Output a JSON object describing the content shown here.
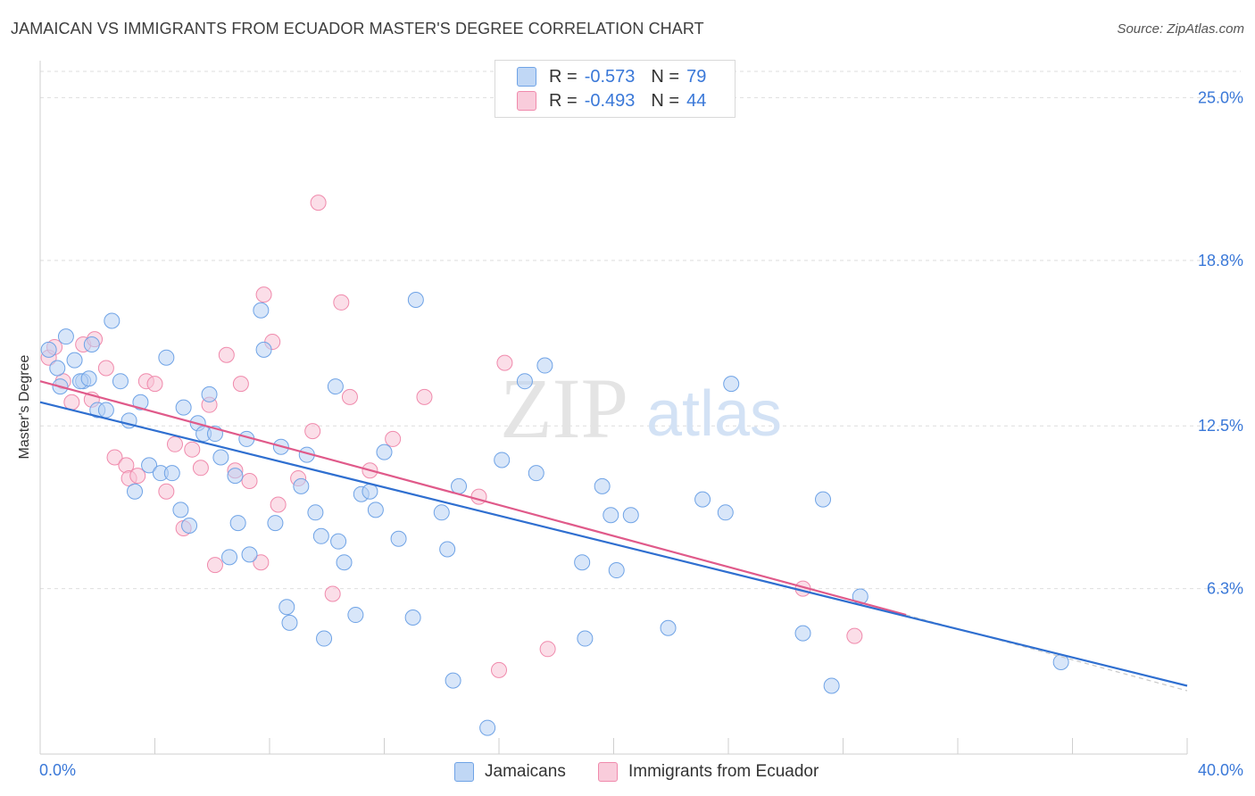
{
  "title": "JAMAICAN VS IMMIGRANTS FROM ECUADOR MASTER'S DEGREE CORRELATION CHART",
  "source": "Source: ZipAtlas.com",
  "watermark": {
    "zip": "ZIP",
    "atlas": "atlas"
  },
  "legend": {
    "rows": [
      {
        "r_label": "R =",
        "r_value": "-0.573",
        "n_label": "N =",
        "n_value": "79"
      },
      {
        "r_label": "R =",
        "r_value": "-0.493",
        "n_label": "N =",
        "n_value": "44"
      }
    ]
  },
  "colors": {
    "blue": "#6fa3e6",
    "blue_fill": "#b8d2f4",
    "blue_line": "#2f6fd0",
    "pink": "#f08aac",
    "pink_fill": "#f7c3d5",
    "pink_line": "#e05a8a",
    "tick_label": "#3a78d8"
  },
  "chart_data": {
    "type": "scatter",
    "title": "JAMAICAN VS IMMIGRANTS FROM ECUADOR MASTER'S DEGREE CORRELATION CHART",
    "xlabel": "",
    "ylabel": "Master's Degree",
    "xlim": [
      0,
      40
    ],
    "ylim": [
      0,
      26
    ],
    "x_tick_labels": [
      "0.0%",
      "40.0%"
    ],
    "y_ticks": [
      6.3,
      12.5,
      18.8,
      25.0
    ],
    "y_tick_labels": [
      "6.3%",
      "12.5%",
      "18.8%",
      "25.0%"
    ],
    "grid": true,
    "legend_position": "top-center",
    "series": [
      {
        "name": "Jamaicans",
        "color": "#6fa3e6",
        "points": [
          [
            0.3,
            15.4
          ],
          [
            0.6,
            14.7
          ],
          [
            0.9,
            15.9
          ],
          [
            1.2,
            15.0
          ],
          [
            1.5,
            14.2
          ],
          [
            1.4,
            14.2
          ],
          [
            1.8,
            15.6
          ],
          [
            2.0,
            13.1
          ],
          [
            2.5,
            16.5
          ],
          [
            2.8,
            14.2
          ],
          [
            3.1,
            12.7
          ],
          [
            3.5,
            13.4
          ],
          [
            3.3,
            10.0
          ],
          [
            3.8,
            11.0
          ],
          [
            4.2,
            10.7
          ],
          [
            4.4,
            15.1
          ],
          [
            4.6,
            10.7
          ],
          [
            4.9,
            9.3
          ],
          [
            5.0,
            13.2
          ],
          [
            5.2,
            8.7
          ],
          [
            5.5,
            12.6
          ],
          [
            5.7,
            12.2
          ],
          [
            5.9,
            13.7
          ],
          [
            6.1,
            12.2
          ],
          [
            6.3,
            11.3
          ],
          [
            6.6,
            7.5
          ],
          [
            6.8,
            10.6
          ],
          [
            6.9,
            8.8
          ],
          [
            7.2,
            12.0
          ],
          [
            7.3,
            7.6
          ],
          [
            7.7,
            16.9
          ],
          [
            7.8,
            15.4
          ],
          [
            8.2,
            8.8
          ],
          [
            8.4,
            11.7
          ],
          [
            8.6,
            5.6
          ],
          [
            8.7,
            5.0
          ],
          [
            9.1,
            10.2
          ],
          [
            9.3,
            11.4
          ],
          [
            9.6,
            9.2
          ],
          [
            9.8,
            8.3
          ],
          [
            10.3,
            14.0
          ],
          [
            10.4,
            8.1
          ],
          [
            10.6,
            7.3
          ],
          [
            11.0,
            5.3
          ],
          [
            11.2,
            9.9
          ],
          [
            11.5,
            10.0
          ],
          [
            11.7,
            9.3
          ],
          [
            12.0,
            11.5
          ],
          [
            12.5,
            8.2
          ],
          [
            13.0,
            5.2
          ],
          [
            13.1,
            17.3
          ],
          [
            14.0,
            9.2
          ],
          [
            14.2,
            7.8
          ],
          [
            14.4,
            2.8
          ],
          [
            14.6,
            10.2
          ],
          [
            15.6,
            1.0
          ],
          [
            16.1,
            11.2
          ],
          [
            16.9,
            14.2
          ],
          [
            17.3,
            10.7
          ],
          [
            17.6,
            14.8
          ],
          [
            18.9,
            7.3
          ],
          [
            19.0,
            4.4
          ],
          [
            19.6,
            10.2
          ],
          [
            19.9,
            9.1
          ],
          [
            20.1,
            7.0
          ],
          [
            20.6,
            9.1
          ],
          [
            21.9,
            4.8
          ],
          [
            23.1,
            9.7
          ],
          [
            23.9,
            9.2
          ],
          [
            24.1,
            14.1
          ],
          [
            26.6,
            4.6
          ],
          [
            27.3,
            9.7
          ],
          [
            27.6,
            2.6
          ],
          [
            28.6,
            6.0
          ],
          [
            35.6,
            3.5
          ],
          [
            1.7,
            14.3
          ],
          [
            0.7,
            14.0
          ],
          [
            2.3,
            13.1
          ],
          [
            9.9,
            4.4
          ]
        ]
      },
      {
        "name": "Immigrants from Ecuador",
        "color": "#f08aac",
        "points": [
          [
            0.3,
            15.1
          ],
          [
            0.5,
            15.5
          ],
          [
            0.8,
            14.2
          ],
          [
            1.1,
            13.4
          ],
          [
            1.5,
            15.6
          ],
          [
            1.8,
            13.5
          ],
          [
            1.9,
            15.8
          ],
          [
            2.3,
            14.7
          ],
          [
            2.6,
            11.3
          ],
          [
            3.0,
            11.0
          ],
          [
            3.1,
            10.5
          ],
          [
            3.4,
            10.6
          ],
          [
            3.7,
            14.2
          ],
          [
            4.0,
            14.1
          ],
          [
            4.4,
            10.0
          ],
          [
            4.7,
            11.8
          ],
          [
            5.0,
            8.6
          ],
          [
            5.3,
            11.6
          ],
          [
            5.6,
            10.9
          ],
          [
            5.9,
            13.3
          ],
          [
            6.1,
            7.2
          ],
          [
            6.5,
            15.2
          ],
          [
            6.8,
            10.8
          ],
          [
            7.0,
            14.1
          ],
          [
            7.3,
            10.4
          ],
          [
            7.7,
            7.3
          ],
          [
            7.8,
            17.5
          ],
          [
            8.1,
            15.7
          ],
          [
            8.3,
            9.5
          ],
          [
            9.0,
            10.5
          ],
          [
            9.5,
            12.3
          ],
          [
            9.7,
            21.0
          ],
          [
            10.2,
            6.1
          ],
          [
            10.5,
            17.2
          ],
          [
            10.8,
            13.6
          ],
          [
            11.5,
            10.8
          ],
          [
            12.3,
            12.0
          ],
          [
            13.4,
            13.6
          ],
          [
            15.3,
            9.8
          ],
          [
            16.0,
            3.2
          ],
          [
            16.2,
            14.9
          ],
          [
            17.7,
            4.0
          ],
          [
            26.6,
            6.3
          ],
          [
            28.4,
            4.5
          ]
        ]
      }
    ],
    "trend_lines": [
      {
        "series": "Jamaicans",
        "x": [
          0,
          40
        ],
        "y": [
          13.4,
          2.6
        ]
      },
      {
        "series": "Immigrants from Ecuador",
        "x": [
          0,
          30.2
        ],
        "y": [
          14.2,
          5.3
        ]
      }
    ]
  },
  "bottom_legend": [
    "Jamaicans",
    "Immigrants from Ecuador"
  ]
}
